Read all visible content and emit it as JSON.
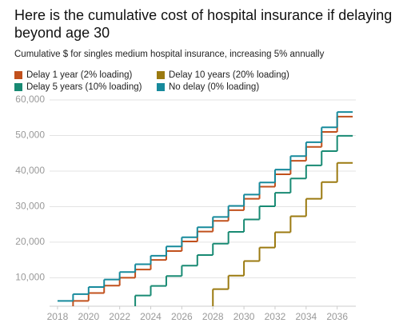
{
  "chart_data": {
    "type": "step",
    "title": "Here is the cumulative cost of hospital insurance if delaying beyond age 30",
    "subtitle": "Cumulative $ for singles medium hospital insurance, increasing 5% annually",
    "xlim": [
      2017.9,
      2037.2
    ],
    "ylim": [
      2000,
      60000
    ],
    "xticks": [
      2018,
      2020,
      2022,
      2024,
      2026,
      2028,
      2030,
      2032,
      2034,
      2036
    ],
    "yticks": [
      {
        "value": 10000,
        "label": "10,000"
      },
      {
        "value": 20000,
        "label": "20,000"
      },
      {
        "value": 30000,
        "label": "30,000"
      },
      {
        "value": 40000,
        "label": "40,000"
      },
      {
        "value": 50000,
        "label": "50,000"
      },
      {
        "value": 60000,
        "label": "60,000"
      }
    ],
    "grid": true,
    "series": [
      {
        "name": "Delay 1 year (2% loading)",
        "color": "#c1501c",
        "x": [
          2019,
          2020,
          2021,
          2022,
          2023,
          2024,
          2025,
          2026,
          2027,
          2028,
          2029,
          2030,
          2031,
          2032,
          2033,
          2034,
          2035,
          2036
        ],
        "values": [
          3500,
          5700,
          7800,
          10000,
          12300,
          15000,
          17500,
          20200,
          23000,
          26000,
          29000,
          32200,
          35600,
          39100,
          42900,
          46800,
          51000,
          55300
        ]
      },
      {
        "name": "Delay 10 years (20% loading)",
        "color": "#9b7a10",
        "x": [
          2028,
          2029,
          2030,
          2031,
          2032,
          2033,
          2034,
          2035,
          2036
        ],
        "values": [
          6800,
          10600,
          14700,
          18500,
          22800,
          27300,
          32200,
          36900,
          42300
        ]
      },
      {
        "name": "Delay 5 years (10% loading)",
        "color": "#188a73",
        "x": [
          2023,
          2024,
          2025,
          2026,
          2027,
          2028,
          2029,
          2030,
          2031,
          2032,
          2033,
          2034,
          2035,
          2036
        ],
        "values": [
          5000,
          7700,
          10500,
          13400,
          16400,
          19600,
          22900,
          26400,
          30100,
          33900,
          37900,
          41600,
          45600,
          49900
        ]
      },
      {
        "name": "No delay (0% loading)",
        "color": "#178a9c",
        "x": [
          2018,
          2019,
          2020,
          2021,
          2022,
          2023,
          2024,
          2025,
          2026,
          2027,
          2028,
          2029,
          2030,
          2031,
          2032,
          2033,
          2034,
          2035,
          2036
        ],
        "values": [
          3500,
          5400,
          7400,
          9500,
          11600,
          13800,
          16200,
          18800,
          21400,
          24200,
          27100,
          30200,
          33400,
          36800,
          40400,
          44200,
          48100,
          52300,
          56600
        ]
      }
    ]
  }
}
